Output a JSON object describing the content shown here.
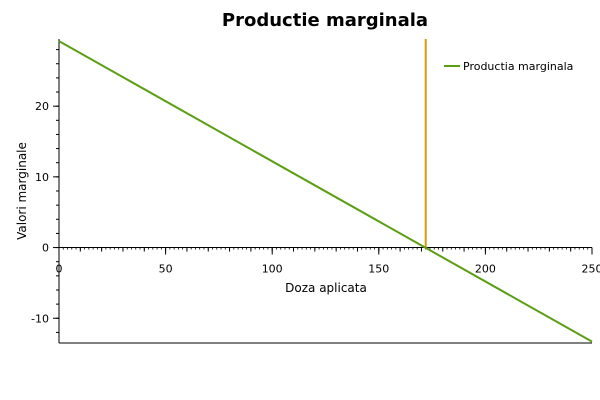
{
  "chart_data": {
    "type": "line",
    "title": "Productie marginala",
    "xlabel": "Doza aplicata",
    "ylabel": "Valori marginale",
    "xlim": [
      0,
      250
    ],
    "ylim": [
      -13.5,
      29.5
    ],
    "x_ticks": [
      0,
      50,
      100,
      150,
      200,
      250
    ],
    "y_ticks": [
      -10,
      0,
      10,
      20
    ],
    "grid": false,
    "legend_position": "top-right",
    "series": [
      {
        "name": "Productia marginala",
        "color": "#5a9e12",
        "x": [
          0,
          250
        ],
        "y": [
          29.2,
          -13.3
        ]
      }
    ],
    "annotations": [
      {
        "type": "vertical_line",
        "x": 172,
        "y_from": 0,
        "y_to": 29.5,
        "color": "#d49a0c"
      }
    ]
  }
}
